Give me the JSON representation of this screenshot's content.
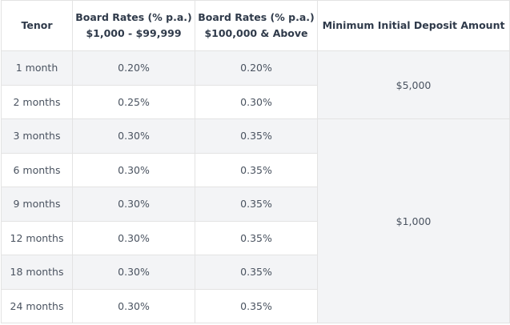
{
  "table": {
    "headers": {
      "tenor": "Tenor",
      "rate_low_line1": "Board Rates (% p.a.)",
      "rate_low_line2": "$1,000 - $99,999",
      "rate_high_line1": "Board Rates (% p.a.)",
      "rate_high_line2": "$100,000 & Above",
      "min_deposit": "Minimum Initial Deposit Amount"
    },
    "rows": [
      {
        "tenor": "1 month",
        "rate_low": "0.20%",
        "rate_high": "0.20%"
      },
      {
        "tenor": "2 months",
        "rate_low": "0.25%",
        "rate_high": "0.30%"
      },
      {
        "tenor": "3 months",
        "rate_low": "0.30%",
        "rate_high": "0.35%"
      },
      {
        "tenor": "6 months",
        "rate_low": "0.30%",
        "rate_high": "0.35%"
      },
      {
        "tenor": "9 months",
        "rate_low": "0.30%",
        "rate_high": "0.35%"
      },
      {
        "tenor": "12 months",
        "rate_low": "0.30%",
        "rate_high": "0.35%"
      },
      {
        "tenor": "18 months",
        "rate_low": "0.30%",
        "rate_high": "0.35%"
      },
      {
        "tenor": "24 months",
        "rate_low": "0.30%",
        "rate_high": "0.35%"
      }
    ],
    "deposit_groups": [
      {
        "amount": "$5,000",
        "rows": 2
      },
      {
        "amount": "$1,000",
        "rows": 6
      }
    ],
    "colors": {
      "shade": "#f3f4f6",
      "border": "#e3e3e3",
      "header_text": "#2f3a4a",
      "body_text": "#4a5360"
    }
  }
}
